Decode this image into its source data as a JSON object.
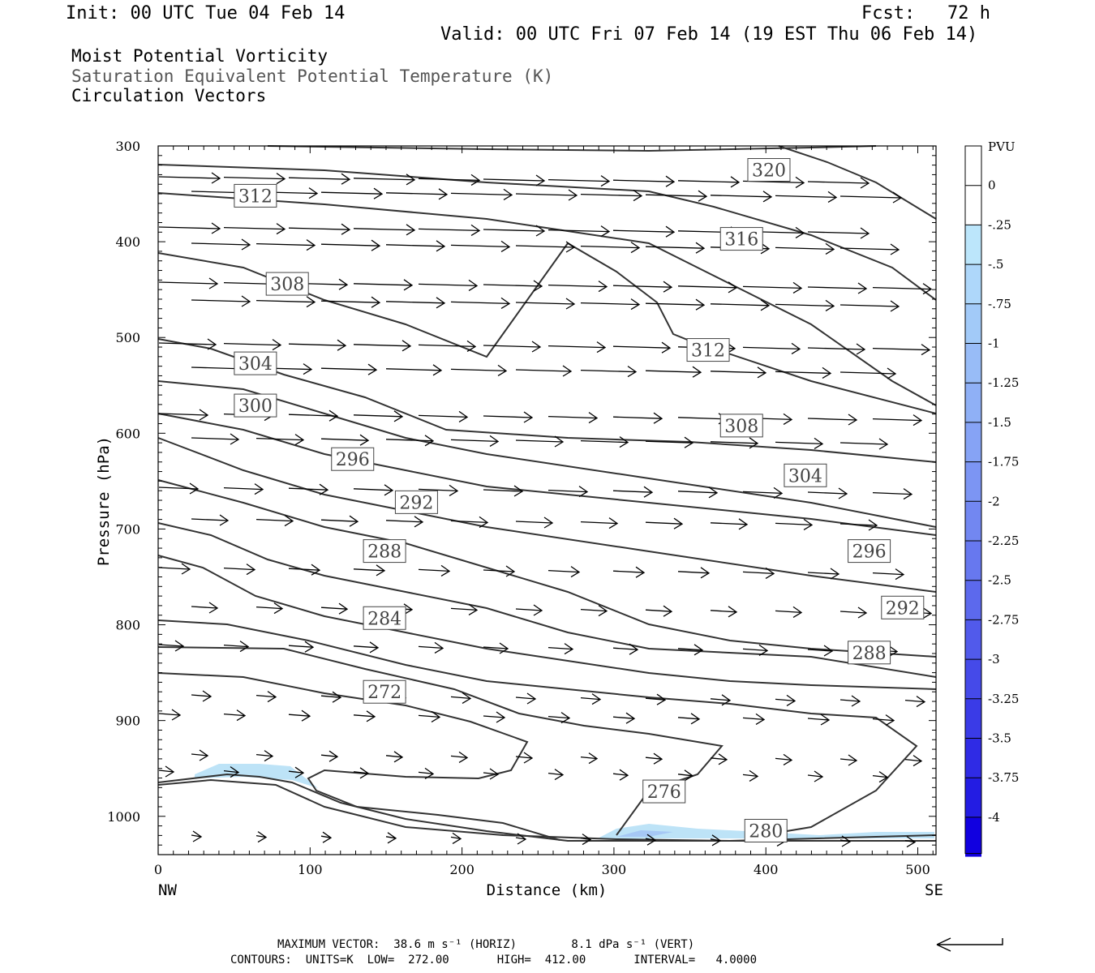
{
  "header": {
    "init": "Init: 00 UTC Tue 04 Feb 14",
    "fcst": "Fcst:   72 h",
    "valid": "Valid: 00 UTC Fri 07 Feb 14 (19 EST Thu 06 Feb 14)"
  },
  "titles": {
    "line1": "Moist Potential Vorticity",
    "line2": "Saturation Equivalent Potential Temperature (K)",
    "line3": "Circulation Vectors"
  },
  "footer": {
    "line1": "MAXIMUM VECTOR:  38.6 m s⁻¹ (HORIZ)        8.1 dPa s⁻¹ (VERT)",
    "line2": "CONTOURS:  UNITS=K  LOW=  272.00       HIGH=  412.00       INTERVAL=   4.0000"
  },
  "colors": {
    "contour": "#333333",
    "shade_light": "#bde3f7",
    "shade_mid": "#a6c8f5"
  },
  "chart_data": {
    "type": "line",
    "xlabel": "Distance (km)",
    "ylabel": "Pressure (hPa)",
    "xlim": [
      0,
      512
    ],
    "ylim": [
      1040,
      300
    ],
    "x_ticks": [
      "0",
      "100",
      "200",
      "300",
      "400",
      "500"
    ],
    "y_ticks": [
      "300",
      "400",
      "500",
      "600",
      "700",
      "800",
      "900",
      "1000"
    ],
    "x_end_labels": {
      "left": "NW",
      "right": "SE"
    },
    "contour_labels": [
      {
        "text": "320",
        "x": 402,
        "y": 325
      },
      {
        "text": "312",
        "x": 64,
        "y": 352
      },
      {
        "text": "316",
        "x": 384,
        "y": 397
      },
      {
        "text": "308",
        "x": 85,
        "y": 444
      },
      {
        "text": "312",
        "x": 362,
        "y": 513
      },
      {
        "text": "304",
        "x": 64,
        "y": 527
      },
      {
        "text": "300",
        "x": 64,
        "y": 571
      },
      {
        "text": "308",
        "x": 384,
        "y": 592
      },
      {
        "text": "296",
        "x": 128,
        "y": 627
      },
      {
        "text": "304",
        "x": 426,
        "y": 644
      },
      {
        "text": "292",
        "x": 170,
        "y": 672
      },
      {
        "text": "296",
        "x": 468,
        "y": 723
      },
      {
        "text": "288",
        "x": 149,
        "y": 723
      },
      {
        "text": "292",
        "x": 490,
        "y": 782
      },
      {
        "text": "284",
        "x": 149,
        "y": 793
      },
      {
        "text": "288",
        "x": 468,
        "y": 829
      },
      {
        "text": "272",
        "x": 149,
        "y": 870
      },
      {
        "text": "276",
        "x": 333,
        "y": 974
      },
      {
        "text": "280",
        "x": 400,
        "y": 1015
      }
    ],
    "colorbar": {
      "unit": "PVU",
      "levels": [
        "0",
        "-.25",
        "-.5",
        "-.75",
        "-1",
        "-1.25",
        "-1.5",
        "-1.75",
        "-2",
        "-2.25",
        "-2.5",
        "-2.75",
        "-3",
        "-3.25",
        "-3.5",
        "-3.75",
        "-4"
      ],
      "colors": [
        "#ffffff",
        "#ffffff",
        "#bce6fb",
        "#aed7fa",
        "#a2caf8",
        "#98bcf7",
        "#8fb0f6",
        "#86a3f5",
        "#7c95f3",
        "#7287f1",
        "#6778ef",
        "#5c69ed",
        "#515aeb",
        "#454ae9",
        "#3a3be7",
        "#2f2be5",
        "#231ce3",
        "#1100e0"
      ]
    },
    "max_vector_arrow": true
  }
}
